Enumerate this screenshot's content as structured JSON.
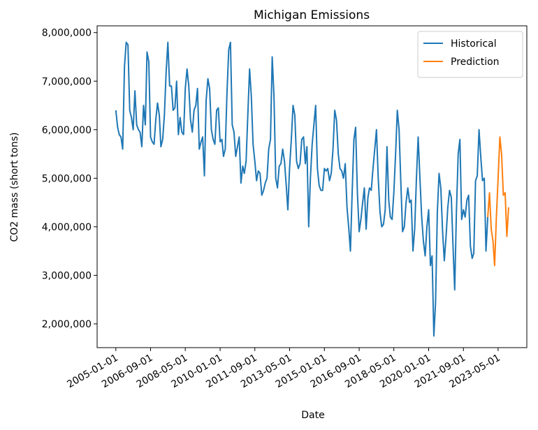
{
  "chart_data": {
    "type": "line",
    "title": "Michigan Emissions",
    "x_label": "Date",
    "y_label": "CO2 mass (short tons)",
    "xlim": [
      "2004-02-08",
      "2024-09-15"
    ],
    "ylim": [
      1510000,
      8140000
    ],
    "xticks": [
      "2005-01-01",
      "2006-09-01",
      "2008-05-01",
      "2010-01-01",
      "2011-09-01",
      "2013-05-01",
      "2015-01-01",
      "2016-09-01",
      "2018-05-01",
      "2020-01-01",
      "2021-09-01",
      "2023-05-01"
    ],
    "yticks": [
      {
        "value": 2000000,
        "label": "2,000,000"
      },
      {
        "value": 3000000,
        "label": "3,000,000"
      },
      {
        "value": 4000000,
        "label": "4,000,000"
      },
      {
        "value": 5000000,
        "label": "5,000,000"
      },
      {
        "value": 6000000,
        "label": "6,000,000"
      },
      {
        "value": 7000000,
        "label": "7,000,000"
      },
      {
        "value": 8000000,
        "label": "8,000,000"
      }
    ],
    "legend": "upper right",
    "series": [
      {
        "name": "Historical",
        "color": "#1f77b4",
        "x": [
          "2005-01-01",
          "2005-02-01",
          "2005-03-01",
          "2005-04-01",
          "2005-05-01",
          "2005-06-01",
          "2005-07-01",
          "2005-08-01",
          "2005-09-01",
          "2005-10-01",
          "2005-11-01",
          "2005-12-01",
          "2006-01-01",
          "2006-02-01",
          "2006-03-01",
          "2006-04-01",
          "2006-05-01",
          "2006-06-01",
          "2006-07-01",
          "2006-08-01",
          "2006-09-01",
          "2006-10-01",
          "2006-11-01",
          "2006-12-01",
          "2007-01-01",
          "2007-02-01",
          "2007-03-01",
          "2007-04-01",
          "2007-05-01",
          "2007-06-01",
          "2007-07-01",
          "2007-08-01",
          "2007-09-01",
          "2007-10-01",
          "2007-11-01",
          "2007-12-01",
          "2008-01-01",
          "2008-02-01",
          "2008-03-01",
          "2008-04-01",
          "2008-05-01",
          "2008-06-01",
          "2008-07-01",
          "2008-08-01",
          "2008-09-01",
          "2008-10-01",
          "2008-11-01",
          "2008-12-01",
          "2009-01-01",
          "2009-02-01",
          "2009-03-01",
          "2009-04-01",
          "2009-05-01",
          "2009-06-01",
          "2009-07-01",
          "2009-08-01",
          "2009-09-01",
          "2009-10-01",
          "2009-11-01",
          "2009-12-01",
          "2010-01-01",
          "2010-02-01",
          "2010-03-01",
          "2010-04-01",
          "2010-05-01",
          "2010-06-01",
          "2010-07-01",
          "2010-08-01",
          "2010-09-01",
          "2010-10-01",
          "2010-11-01",
          "2010-12-01",
          "2011-01-01",
          "2011-02-01",
          "2011-03-01",
          "2011-04-01",
          "2011-05-01",
          "2011-06-01",
          "2011-07-01",
          "2011-08-01",
          "2011-09-01",
          "2011-10-01",
          "2011-11-01",
          "2011-12-01",
          "2012-01-01",
          "2012-02-01",
          "2012-03-01",
          "2012-04-01",
          "2012-05-01",
          "2012-06-01",
          "2012-07-01",
          "2012-08-01",
          "2012-09-01",
          "2012-10-01",
          "2012-11-01",
          "2012-12-01",
          "2013-01-01",
          "2013-02-01",
          "2013-03-01",
          "2013-04-01",
          "2013-05-01",
          "2013-06-01",
          "2013-07-01",
          "2013-08-01",
          "2013-09-01",
          "2013-10-01",
          "2013-11-01",
          "2013-12-01",
          "2014-01-01",
          "2014-02-01",
          "2014-03-01",
          "2014-04-01",
          "2014-05-01",
          "2014-06-01",
          "2014-07-01",
          "2014-08-01",
          "2014-09-01",
          "2014-10-01",
          "2014-11-01",
          "2014-12-01",
          "2015-01-01",
          "2015-02-01",
          "2015-03-01",
          "2015-04-01",
          "2015-05-01",
          "2015-06-01",
          "2015-07-01",
          "2015-08-01",
          "2015-09-01",
          "2015-10-01",
          "2015-11-01",
          "2015-12-01",
          "2016-01-01",
          "2016-02-01",
          "2016-03-01",
          "2016-04-01",
          "2016-05-01",
          "2016-06-01",
          "2016-07-01",
          "2016-08-01",
          "2016-09-01",
          "2016-10-01",
          "2016-11-01",
          "2016-12-01",
          "2017-01-01",
          "2017-02-01",
          "2017-03-01",
          "2017-04-01",
          "2017-05-01",
          "2017-06-01",
          "2017-07-01",
          "2017-08-01",
          "2017-09-01",
          "2017-10-01",
          "2017-11-01",
          "2017-12-01",
          "2018-01-01",
          "2018-02-01",
          "2018-03-01",
          "2018-04-01",
          "2018-05-01",
          "2018-06-01",
          "2018-07-01",
          "2018-08-01",
          "2018-09-01",
          "2018-10-01",
          "2018-11-01",
          "2018-12-01",
          "2019-01-01",
          "2019-02-01",
          "2019-03-01",
          "2019-04-01",
          "2019-05-01",
          "2019-06-01",
          "2019-07-01",
          "2019-08-01",
          "2019-09-01",
          "2019-10-01",
          "2019-11-01",
          "2019-12-01",
          "2020-01-01",
          "2020-02-01",
          "2020-03-01",
          "2020-04-01",
          "2020-05-01",
          "2020-06-01",
          "2020-07-01",
          "2020-08-01",
          "2020-09-01",
          "2020-10-01",
          "2020-11-01",
          "2020-12-01",
          "2021-01-01",
          "2021-02-01",
          "2021-03-01",
          "2021-04-01",
          "2021-05-01",
          "2021-06-01",
          "2021-07-01",
          "2021-08-01",
          "2021-09-01",
          "2021-10-01",
          "2021-11-01",
          "2021-12-01",
          "2022-01-01",
          "2022-02-01",
          "2022-03-01",
          "2022-04-01",
          "2022-05-01",
          "2022-06-01",
          "2022-07-01",
          "2022-08-01",
          "2022-09-01",
          "2022-10-01",
          "2022-11-01"
        ],
        "values": [
          6400000,
          6050000,
          5900000,
          5850000,
          5600000,
          7300000,
          7800000,
          7750000,
          6400000,
          6250000,
          6000000,
          6800000,
          6100000,
          6000000,
          5950000,
          5650000,
          6500000,
          6100000,
          7600000,
          7400000,
          5850000,
          5750000,
          5700000,
          6200000,
          6550000,
          6300000,
          5650000,
          5800000,
          6300000,
          7200000,
          7800000,
          6900000,
          6900000,
          6400000,
          6450000,
          7000000,
          5900000,
          6250000,
          5950000,
          5900000,
          6850000,
          7250000,
          6900000,
          6200000,
          5950000,
          6400000,
          6500000,
          6850000,
          5600000,
          5750000,
          5850000,
          5050000,
          6600000,
          7050000,
          6850000,
          6000000,
          5800000,
          5700000,
          6400000,
          6450000,
          5750000,
          5800000,
          5450000,
          5600000,
          6750000,
          7650000,
          7800000,
          6100000,
          5950000,
          5450000,
          5650000,
          5850000,
          4900000,
          5250000,
          5100000,
          5350000,
          6300000,
          7250000,
          6700000,
          5700000,
          5350000,
          4950000,
          5150000,
          5100000,
          4650000,
          4750000,
          4900000,
          5000000,
          5600000,
          5800000,
          7500000,
          6700000,
          5000000,
          4800000,
          5250000,
          5300000,
          5600000,
          5350000,
          4900000,
          4350000,
          5200000,
          5800000,
          6500000,
          6300000,
          5350000,
          5200000,
          5300000,
          5800000,
          5850000,
          5300000,
          5650000,
          4000000,
          5000000,
          5700000,
          6100000,
          6500000,
          5200000,
          4850000,
          4750000,
          4750000,
          5200000,
          5150000,
          5200000,
          4950000,
          5100000,
          5600000,
          6400000,
          6200000,
          5500000,
          5200000,
          5150000,
          5000000,
          5300000,
          4400000,
          4000000,
          3500000,
          4700000,
          5800000,
          6050000,
          4700000,
          3900000,
          4150000,
          4500000,
          4800000,
          3950000,
          4600000,
          4800000,
          4750000,
          5200000,
          5600000,
          6000000,
          5000000,
          4300000,
          4000000,
          4050000,
          4350000,
          5650000,
          4550000,
          4200000,
          4150000,
          4700000,
          5500000,
          6400000,
          6000000,
          4900000,
          3900000,
          4000000,
          4500000,
          4800000,
          4500000,
          4550000,
          3500000,
          3950000,
          5000000,
          5850000,
          5000000,
          4200000,
          3700000,
          3400000,
          4000000,
          4350000,
          3200000,
          3400000,
          1750000,
          2450000,
          4300000,
          5100000,
          4800000,
          3900000,
          3300000,
          3800000,
          4400000,
          4750000,
          4600000,
          3650000,
          2700000,
          4300000,
          5500000,
          5800000,
          4150000,
          4350000,
          4200000,
          4550000,
          4650000,
          3600000,
          3350000,
          3450000,
          4950000,
          5050000,
          6000000,
          5450000,
          4950000,
          5000000,
          3500000,
          4200000
        ]
      },
      {
        "name": "Prediction",
        "color": "#ff7f0e",
        "x": [
          "2022-11-01",
          "2022-12-01",
          "2023-01-01",
          "2023-02-01",
          "2023-03-01",
          "2023-04-01",
          "2023-05-01",
          "2023-06-01",
          "2023-07-01",
          "2023-08-01",
          "2023-09-01",
          "2023-10-01",
          "2023-11-01"
        ],
        "values": [
          4200000,
          4700000,
          3950000,
          3700000,
          3200000,
          4200000,
          5000000,
          5850000,
          5500000,
          4650000,
          4700000,
          3800000,
          4400000
        ]
      }
    ]
  }
}
